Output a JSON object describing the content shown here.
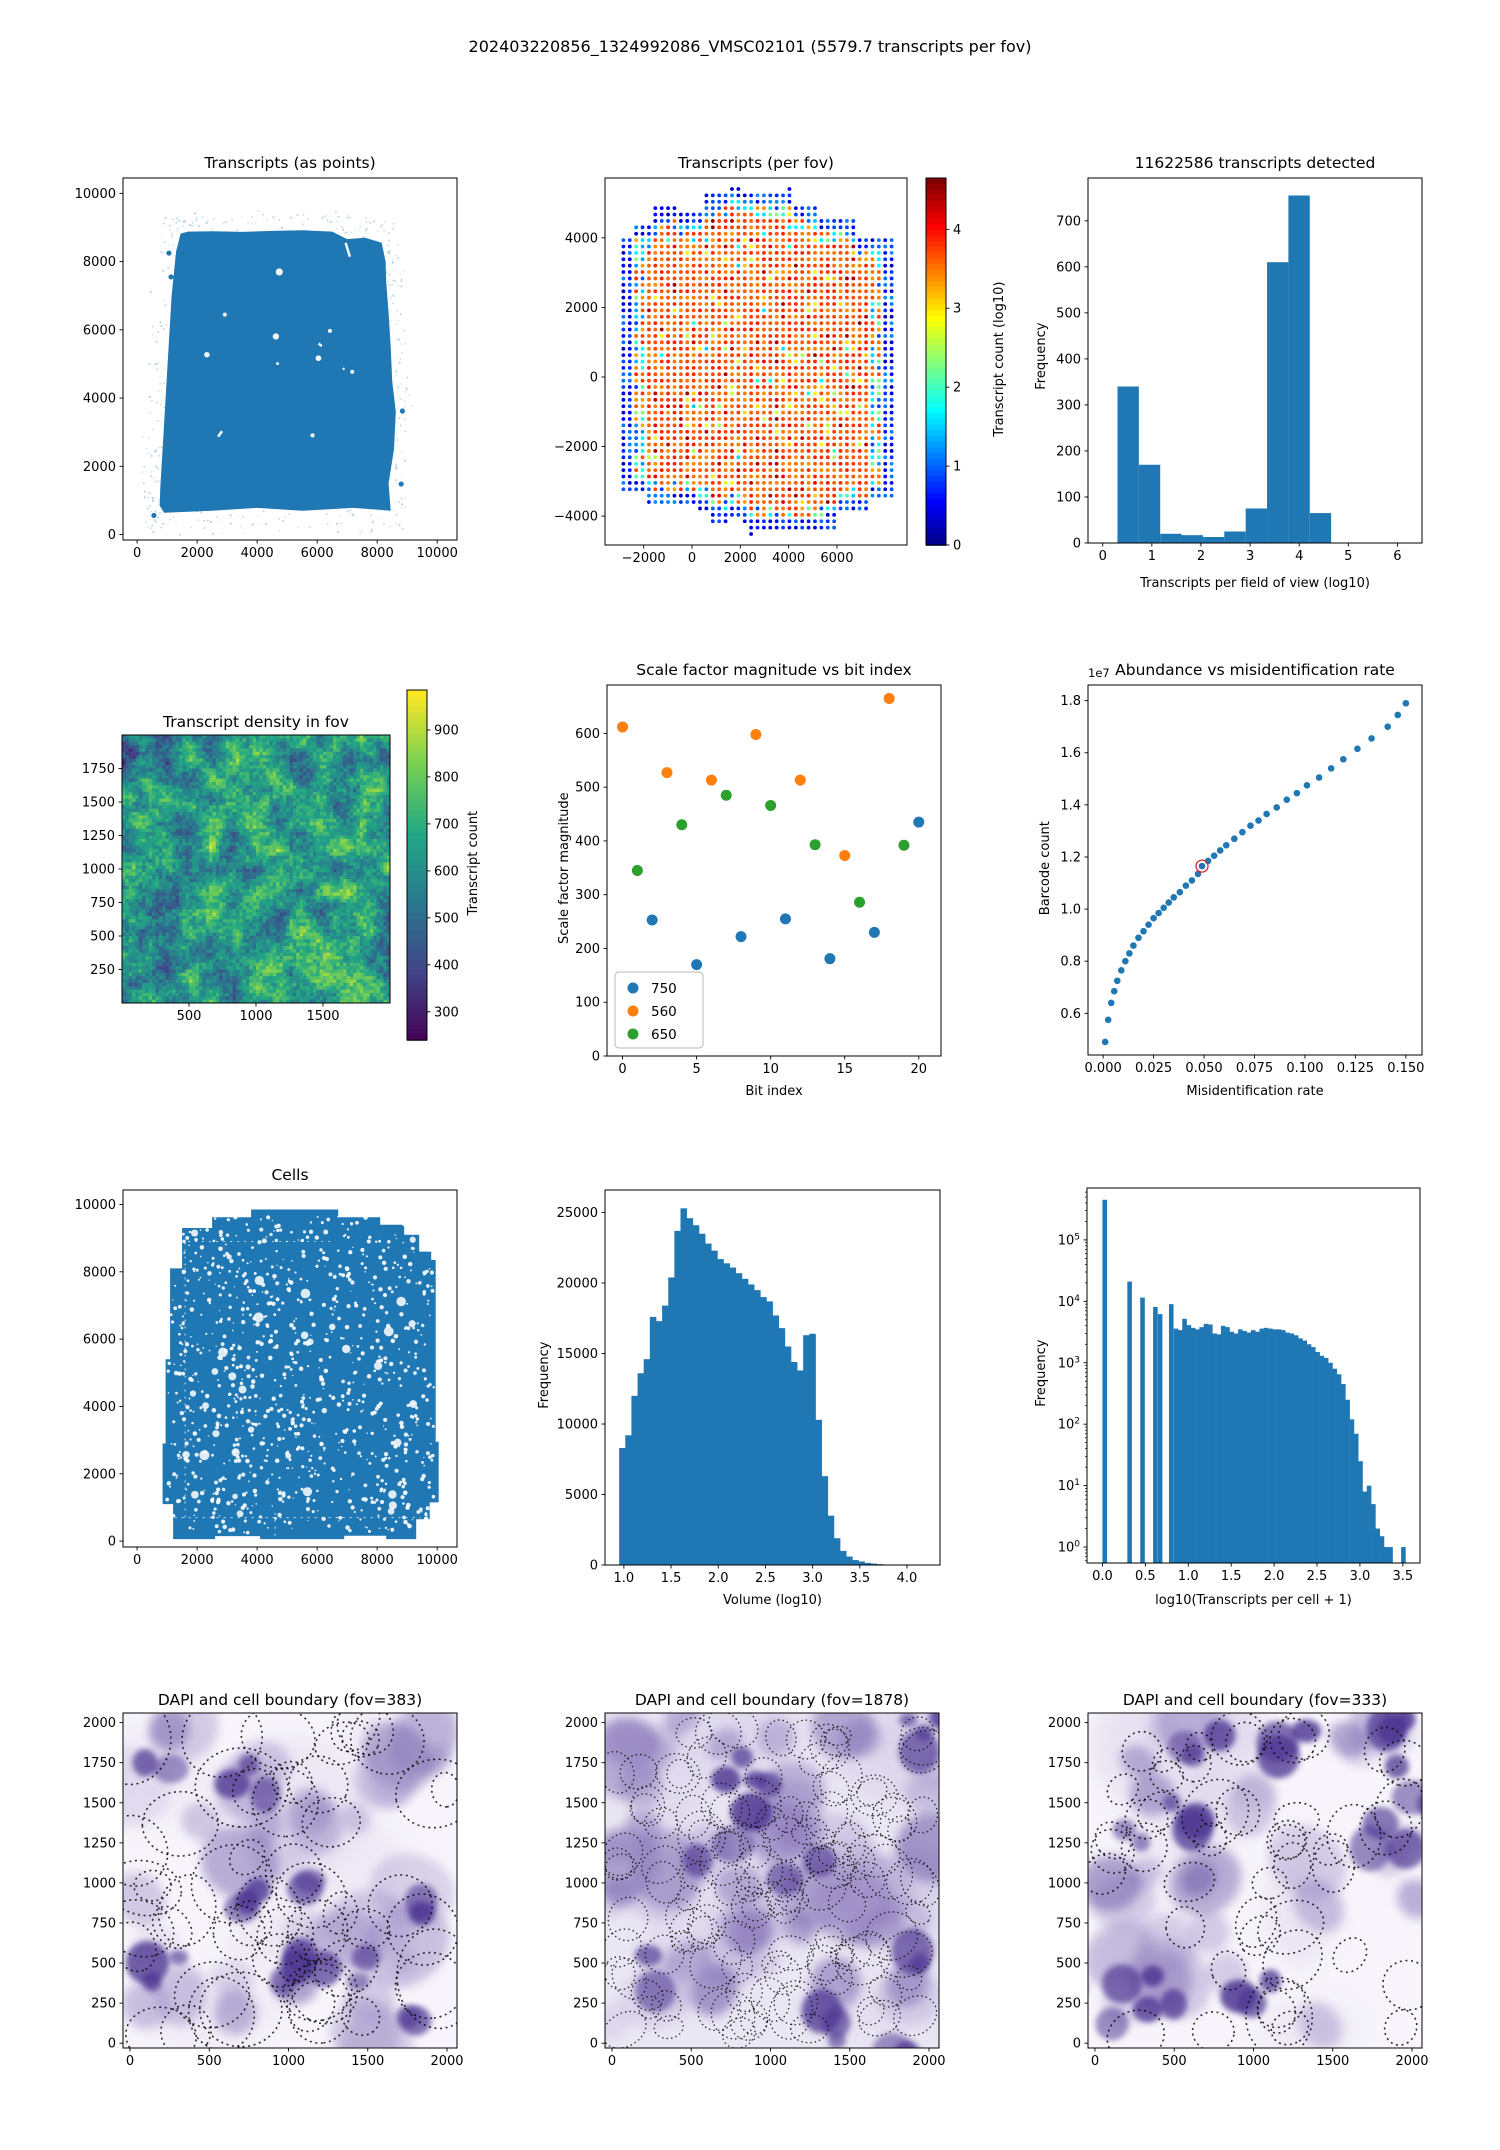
{
  "figure": {
    "title": "202403220856_1324992086_VMSC02101 (5579.7 transcripts per fov)"
  },
  "colors": {
    "mpl_blue": "#1f77b4",
    "mpl_orange": "#ff7f0e",
    "mpl_green": "#2ca02c",
    "highlight_red": "#d62728"
  },
  "chart_data": [
    {
      "id": "transcripts_points",
      "type": "scatter",
      "title": "Transcripts (as points)",
      "xticks": [
        0,
        2000,
        4000,
        6000,
        8000,
        10000
      ],
      "yticks": [
        0,
        2000,
        4000,
        6000,
        8000,
        10000
      ],
      "xlim": [
        -470,
        10660
      ],
      "ylim": [
        -160,
        10450
      ],
      "point_color": "#1f77b4",
      "tissue_outline": [
        [
          750,
          850
        ],
        [
          900,
          640
        ],
        [
          2500,
          700
        ],
        [
          4000,
          780
        ],
        [
          5500,
          700
        ],
        [
          7200,
          780
        ],
        [
          8450,
          700
        ],
        [
          8380,
          1500
        ],
        [
          8560,
          2500
        ],
        [
          8620,
          3600
        ],
        [
          8500,
          4500
        ],
        [
          8450,
          5500
        ],
        [
          8380,
          6500
        ],
        [
          8300,
          7400
        ],
        [
          8280,
          8000
        ],
        [
          8150,
          8550
        ],
        [
          7600,
          8700
        ],
        [
          7000,
          8660
        ],
        [
          6500,
          8880
        ],
        [
          5500,
          8920
        ],
        [
          4500,
          8900
        ],
        [
          3500,
          8870
        ],
        [
          2500,
          8890
        ],
        [
          1700,
          8880
        ],
        [
          1450,
          8820
        ],
        [
          1300,
          8300
        ],
        [
          1150,
          7000
        ],
        [
          1050,
          5500
        ],
        [
          950,
          4000
        ],
        [
          850,
          2500
        ],
        [
          780,
          1500
        ]
      ],
      "stray_dots": [
        [
          1060,
          8250
        ],
        [
          1130,
          7550
        ],
        [
          8840,
          3620
        ],
        [
          8800,
          1480
        ],
        [
          560,
          560
        ]
      ],
      "white_marks": [
        [
          6950,
          8550,
          7090,
          8140
        ],
        [
          2700,
          2870,
          2830,
          3030
        ],
        [
          6050,
          5600,
          6150,
          5520
        ]
      ],
      "halo_dots": 330,
      "seed": 11
    },
    {
      "id": "transcripts_per_fov",
      "type": "scatter-grid",
      "title": "Transcripts (per fov)",
      "xticks": [
        -2000,
        0,
        2000,
        4000,
        6000
      ],
      "xtick_labels": [
        "−2000",
        "0",
        "2000",
        "4000",
        "6000"
      ],
      "yticks": [
        -4000,
        -2000,
        0,
        2000,
        4000
      ],
      "ytick_labels": [
        "−4000",
        "−2000",
        "0",
        "2000",
        "4000"
      ],
      "xlim": [
        -3600,
        8900
      ],
      "ylim": [
        -4830,
        5720
      ],
      "colorbar": {
        "label": "Transcript count (log10)",
        "ticks": [
          0,
          1,
          2,
          3,
          4
        ],
        "vmin": 0,
        "vmax": 4.65,
        "cmap": "jet"
      },
      "seed": 23
    },
    {
      "id": "transcripts_hist",
      "type": "bar",
      "title": "11622586 transcripts detected",
      "xlabel": "Transcripts per field of view (log10)",
      "ylabel": "Frequency",
      "bin_start": 0.3,
      "bin_width": 0.435,
      "counts": [
        340,
        170,
        20,
        17,
        13,
        25,
        75,
        610,
        755,
        65
      ],
      "xticks": [
        0,
        1,
        2,
        3,
        4,
        5,
        6
      ],
      "yticks": [
        0,
        100,
        200,
        300,
        400,
        500,
        600,
        700
      ],
      "xlim": [
        -0.3,
        6.5
      ],
      "ylim": [
        0,
        793
      ],
      "bar_color": "#1f77b4"
    },
    {
      "id": "density_fov",
      "type": "heatmap",
      "title": "Transcript density in fov",
      "xticks": [
        500,
        1000,
        1500
      ],
      "yticks": [
        250,
        500,
        750,
        1000,
        1250,
        1500,
        1750
      ],
      "xlim": [
        0,
        2000
      ],
      "ylim": [
        0,
        2000
      ],
      "colorbar": {
        "label": "Transcript count",
        "ticks": [
          300,
          400,
          500,
          600,
          700,
          800,
          900
        ],
        "vmin": 240,
        "vmax": 985,
        "cmap": "viridis"
      },
      "seed": 5
    },
    {
      "id": "scale_factor",
      "type": "scatter",
      "title": "Scale factor magnitude vs bit index",
      "xlabel": "Bit index",
      "ylabel": "Scale factor magnitude",
      "series": [
        {
          "name": "750",
          "color": "#1f77b4",
          "x": [
            2,
            5,
            8,
            11,
            14,
            17,
            20
          ],
          "y": [
            253,
            170,
            222,
            255,
            181,
            230,
            435
          ]
        },
        {
          "name": "560",
          "color": "#ff7f0e",
          "x": [
            0,
            3,
            6,
            9,
            12,
            15,
            18
          ],
          "y": [
            612,
            527,
            513,
            598,
            513,
            373,
            665
          ]
        },
        {
          "name": "650",
          "color": "#2ca02c",
          "x": [
            1,
            4,
            7,
            10,
            13,
            16,
            19
          ],
          "y": [
            345,
            430,
            485,
            466,
            393,
            286,
            392
          ]
        }
      ],
      "xticks": [
        0,
        5,
        10,
        15,
        20
      ],
      "yticks": [
        0,
        100,
        200,
        300,
        400,
        500,
        600
      ],
      "xlim": [
        -1.05,
        21.5
      ],
      "ylim": [
        0,
        690
      ]
    },
    {
      "id": "abundance",
      "type": "scatter",
      "title": "Abundance vs misidentification rate",
      "xlabel": "Misidentification rate",
      "ylabel": "Barcode count",
      "y_offset_label": "1e7",
      "x": [
        0.001,
        0.0025,
        0.004,
        0.0055,
        0.007,
        0.009,
        0.011,
        0.013,
        0.015,
        0.0175,
        0.02,
        0.0225,
        0.025,
        0.0275,
        0.03,
        0.0325,
        0.035,
        0.038,
        0.041,
        0.044,
        0.047,
        0.049,
        0.052,
        0.055,
        0.058,
        0.061,
        0.065,
        0.069,
        0.073,
        0.077,
        0.081,
        0.086,
        0.091,
        0.096,
        0.101,
        0.107,
        0.113,
        0.119,
        0.126,
        0.133,
        0.141,
        0.146,
        0.15
      ],
      "y": [
        0.49,
        0.575,
        0.64,
        0.685,
        0.725,
        0.765,
        0.8,
        0.83,
        0.86,
        0.89,
        0.915,
        0.94,
        0.965,
        0.985,
        1.005,
        1.025,
        1.045,
        1.065,
        1.09,
        1.11,
        1.135,
        1.165,
        1.185,
        1.205,
        1.225,
        1.245,
        1.27,
        1.295,
        1.32,
        1.34,
        1.365,
        1.39,
        1.42,
        1.445,
        1.475,
        1.505,
        1.54,
        1.575,
        1.615,
        1.655,
        1.7,
        1.745,
        1.79
      ],
      "highlight_index": 21,
      "highlight_color": "#d62728",
      "point_color": "#1f77b4",
      "xticks": [
        0,
        0.025,
        0.05,
        0.075,
        0.1,
        0.125,
        0.15
      ],
      "xtick_labels": [
        "0.000",
        "0.025",
        "0.050",
        "0.075",
        "0.100",
        "0.125",
        "0.150"
      ],
      "yticks": [
        0.6,
        0.8,
        1.0,
        1.2,
        1.4,
        1.6,
        1.8
      ],
      "ytick_labels": [
        "0.6",
        "0.8",
        "1.0",
        "1.2",
        "1.4",
        "1.6",
        "1.8"
      ],
      "xlim": [
        -0.0075,
        0.158
      ],
      "ylim": [
        0.44,
        1.86
      ]
    },
    {
      "id": "cells",
      "type": "scatter",
      "title": "Cells",
      "xticks": [
        0,
        2000,
        4000,
        6000,
        8000,
        10000
      ],
      "yticks": [
        0,
        2000,
        4000,
        6000,
        8000,
        10000
      ],
      "xlim": [
        -470,
        10660
      ],
      "ylim": [
        -175,
        10430
      ],
      "point_color": "#1f77b4",
      "blob_outline": [
        [
          1700,
          60
        ],
        [
          2600,
          60
        ],
        [
          2600,
          150
        ],
        [
          4100,
          150
        ],
        [
          4100,
          60
        ],
        [
          6900,
          60
        ],
        [
          6900,
          160
        ],
        [
          8300,
          160
        ],
        [
          8300,
          60
        ],
        [
          9300,
          60
        ],
        [
          9300,
          650
        ],
        [
          9750,
          650
        ],
        [
          9750,
          1150
        ],
        [
          10050,
          1150
        ],
        [
          10050,
          2950
        ],
        [
          9950,
          2950
        ],
        [
          9950,
          8350
        ],
        [
          9800,
          8350
        ],
        [
          9800,
          8600
        ],
        [
          9400,
          8600
        ],
        [
          9400,
          9100
        ],
        [
          8900,
          9100
        ],
        [
          8900,
          9400
        ],
        [
          8100,
          9400
        ],
        [
          8100,
          9620
        ],
        [
          6700,
          9620
        ],
        [
          6700,
          9850
        ],
        [
          3800,
          9850
        ],
        [
          3800,
          9620
        ],
        [
          2500,
          9620
        ],
        [
          2500,
          9300
        ],
        [
          1500,
          9300
        ],
        [
          1500,
          8100
        ],
        [
          1100,
          8100
        ],
        [
          1100,
          5400
        ],
        [
          950,
          5400
        ],
        [
          950,
          2900
        ],
        [
          850,
          2900
        ],
        [
          850,
          1100
        ],
        [
          1200,
          1100
        ],
        [
          1200,
          60
        ]
      ],
      "seams": [
        [
          1600,
          700,
          1600,
          8900
        ],
        [
          1250,
          700,
          9450,
          700
        ],
        [
          1700,
          8900,
          6500,
          8900
        ],
        [
          4600,
          160,
          4600,
          900
        ]
      ],
      "speckles": 950,
      "seed": 31
    },
    {
      "id": "volume_hist",
      "type": "bar",
      "title": "",
      "xlabel": "Volume (log10)",
      "ylabel": "Frequency",
      "bin_start": 0.95,
      "bin_width": 0.065,
      "counts": [
        8300,
        9200,
        12000,
        13600,
        14600,
        17600,
        17300,
        18400,
        20400,
        23700,
        25300,
        24600,
        24100,
        23500,
        22800,
        22300,
        21700,
        21400,
        21100,
        20700,
        20300,
        19900,
        19500,
        19000,
        18700,
        17700,
        16800,
        15500,
        14400,
        13800,
        16300,
        16400,
        10300,
        6300,
        3500,
        1900,
        1000,
        600,
        350,
        250,
        150,
        100,
        60,
        30
      ],
      "xticks": [
        1.0,
        1.5,
        2.0,
        2.5,
        3.0,
        3.5,
        4.0
      ],
      "xtick_labels": [
        "1.0",
        "1.5",
        "2.0",
        "2.5",
        "3.0",
        "3.5",
        "4.0"
      ],
      "yticks": [
        0,
        5000,
        10000,
        15000,
        20000,
        25000
      ],
      "xlim": [
        0.8,
        4.35
      ],
      "ylim": [
        0,
        26600
      ],
      "bar_color": "#1f77b4"
    },
    {
      "id": "percell_hist",
      "type": "bar-log",
      "title": "",
      "xlabel": "log10(Transcripts per cell + 1)",
      "ylabel": "Frequency",
      "bar_width": 0.05,
      "bars": [
        [
          0.0,
          450000
        ],
        [
          0.29,
          21000
        ],
        [
          0.44,
          11500
        ],
        [
          0.59,
          8100
        ],
        [
          0.645,
          6200
        ],
        [
          0.775,
          9000
        ],
        [
          0.83,
          3600
        ],
        [
          0.88,
          3400
        ],
        [
          0.93,
          5200
        ],
        [
          0.98,
          4100
        ],
        [
          1.03,
          3700
        ],
        [
          1.08,
          3500
        ],
        [
          1.13,
          3800
        ],
        [
          1.18,
          4300
        ],
        [
          1.23,
          4200
        ],
        [
          1.28,
          3000
        ],
        [
          1.33,
          2900
        ],
        [
          1.38,
          4000
        ],
        [
          1.43,
          3800
        ],
        [
          1.48,
          3200
        ],
        [
          1.53,
          3000
        ],
        [
          1.58,
          3500
        ],
        [
          1.63,
          3300
        ],
        [
          1.68,
          3100
        ],
        [
          1.73,
          3400
        ],
        [
          1.78,
          3200
        ],
        [
          1.83,
          3600
        ],
        [
          1.88,
          3700
        ],
        [
          1.93,
          3600
        ],
        [
          1.98,
          3500
        ],
        [
          2.03,
          3500
        ],
        [
          2.08,
          3400
        ],
        [
          2.13,
          3100
        ],
        [
          2.18,
          3000
        ],
        [
          2.23,
          2800
        ],
        [
          2.28,
          2500
        ],
        [
          2.33,
          2300
        ],
        [
          2.38,
          2000
        ],
        [
          2.43,
          1800
        ],
        [
          2.48,
          1500
        ],
        [
          2.53,
          1300
        ],
        [
          2.58,
          1200
        ],
        [
          2.63,
          1000
        ],
        [
          2.68,
          800
        ],
        [
          2.73,
          650
        ],
        [
          2.78,
          450
        ],
        [
          2.83,
          250
        ],
        [
          2.88,
          120
        ],
        [
          2.93,
          70
        ],
        [
          2.98,
          25
        ],
        [
          3.03,
          8
        ],
        [
          3.08,
          10
        ],
        [
          3.13,
          5
        ],
        [
          3.18,
          2
        ],
        [
          3.23,
          1.5
        ],
        [
          3.28,
          1
        ],
        [
          3.33,
          1
        ],
        [
          3.48,
          1
        ]
      ],
      "xticks": [
        0.0,
        0.5,
        1.0,
        1.5,
        2.0,
        2.5,
        3.0,
        3.5
      ],
      "xtick_labels": [
        "0.0",
        "0.5",
        "1.0",
        "1.5",
        "2.0",
        "2.5",
        "3.0",
        "3.5"
      ],
      "ylog_decades": [
        0,
        1,
        2,
        3,
        4,
        5
      ],
      "xlim": [
        -0.18,
        3.7
      ],
      "ylim_log": [
        0.55,
        700000
      ],
      "bar_color": "#1f77b4"
    },
    {
      "id": "dapi_383",
      "type": "image",
      "title": "DAPI and cell boundary (fov=383)",
      "fov": "383",
      "xticks": [
        0,
        500,
        1000,
        1500,
        2000
      ],
      "yticks": [
        0,
        250,
        500,
        750,
        1000,
        1250,
        1500,
        1750,
        2000
      ],
      "xlim": [
        -44,
        2063
      ],
      "ylim": [
        -30,
        2060
      ],
      "bg": "#f7f5fb",
      "seed": 42,
      "blobs": 34,
      "dark_blobs": 9,
      "outlines": 52,
      "outline_r": [
        15,
        40
      ],
      "haze": 6
    },
    {
      "id": "dapi_1878",
      "type": "image",
      "title": "DAPI and cell boundary (fov=1878)",
      "fov": "1878",
      "xticks": [
        0,
        500,
        1000,
        1500,
        2000
      ],
      "yticks": [
        0,
        250,
        500,
        750,
        1000,
        1250,
        1500,
        1750,
        2000
      ],
      "xlim": [
        -44,
        2063
      ],
      "ylim": [
        -30,
        2060
      ],
      "bg": "#eae7f4",
      "seed": 77,
      "blobs": 60,
      "dark_blobs": 10,
      "outlines": 125,
      "outline_r": [
        11,
        24
      ],
      "haze": 10
    },
    {
      "id": "dapi_333",
      "type": "image",
      "title": "DAPI and cell boundary (fov=333)",
      "fov": "333",
      "xticks": [
        0,
        500,
        1000,
        1500,
        2000
      ],
      "yticks": [
        0,
        250,
        500,
        750,
        1000,
        1250,
        1500,
        1750,
        2000
      ],
      "xlim": [
        -44,
        2063
      ],
      "ylim": [
        -30,
        2060
      ],
      "bg": "#f7f5fb",
      "seed": 15,
      "blobs": 30,
      "dark_blobs": 10,
      "outlines": 48,
      "outline_r": [
        13,
        34
      ],
      "haze": 7
    }
  ]
}
